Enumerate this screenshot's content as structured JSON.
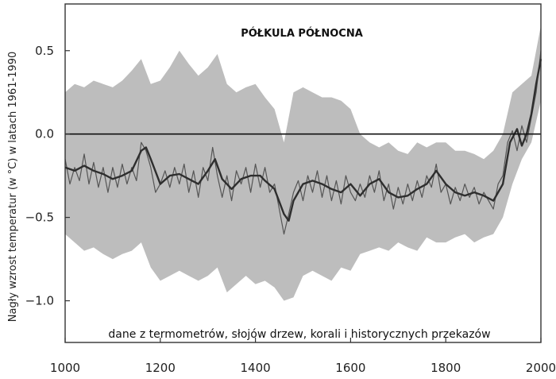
{
  "chart_data": {
    "type": "line",
    "title": "PÓŁKULA PÓŁNOCNA",
    "annotation": "dane z termometrów, słojów drzew, korali i historycznych przekazów",
    "xlabel": "",
    "ylabel": "Nagły wzrost temperatur (w °C) w latach 1961-1990",
    "xlim": [
      1000,
      2000
    ],
    "ylim": [
      -1.25,
      0.78
    ],
    "xticks": [
      1000,
      1200,
      1400,
      1600,
      1800,
      2000
    ],
    "yticks": [
      0.5,
      0.0,
      -0.5,
      -1.0
    ],
    "ytick_labels": [
      "0.5",
      "0.0",
      "−0.5",
      "−1.0"
    ],
    "reference_line": 0.0,
    "colors": {
      "band": "#bdbdbd",
      "annual": "#555555",
      "smoothed": "#2e2e2e",
      "reference": "#111111",
      "frame": "#333333"
    },
    "series": [
      {
        "role": "smoothed",
        "x": [
          1000,
          1020,
          1040,
          1060,
          1080,
          1100,
          1120,
          1140,
          1160,
          1170,
          1180,
          1200,
          1220,
          1240,
          1260,
          1280,
          1300,
          1315,
          1330,
          1350,
          1370,
          1390,
          1410,
          1420,
          1440,
          1460,
          1470,
          1480,
          1500,
          1520,
          1540,
          1560,
          1580,
          1600,
          1620,
          1640,
          1660,
          1680,
          1700,
          1720,
          1740,
          1760,
          1780,
          1800,
          1820,
          1840,
          1860,
          1880,
          1900,
          1920,
          1935,
          1950,
          1960,
          1970,
          1980,
          1990,
          2000
        ],
        "y": [
          -0.2,
          -0.22,
          -0.19,
          -0.22,
          -0.24,
          -0.27,
          -0.25,
          -0.22,
          -0.1,
          -0.08,
          -0.15,
          -0.3,
          -0.25,
          -0.24,
          -0.27,
          -0.3,
          -0.22,
          -0.15,
          -0.27,
          -0.33,
          -0.27,
          -0.25,
          -0.25,
          -0.28,
          -0.33,
          -0.48,
          -0.52,
          -0.4,
          -0.3,
          -0.28,
          -0.3,
          -0.33,
          -0.35,
          -0.3,
          -0.37,
          -0.3,
          -0.27,
          -0.35,
          -0.38,
          -0.37,
          -0.33,
          -0.3,
          -0.22,
          -0.3,
          -0.35,
          -0.37,
          -0.35,
          -0.37,
          -0.4,
          -0.3,
          -0.05,
          0.03,
          -0.07,
          0.0,
          0.12,
          0.3,
          0.45
        ]
      },
      {
        "role": "annual",
        "x": [
          1000,
          1010,
          1020,
          1030,
          1040,
          1050,
          1060,
          1070,
          1080,
          1090,
          1100,
          1110,
          1120,
          1130,
          1140,
          1150,
          1160,
          1170,
          1180,
          1190,
          1200,
          1210,
          1220,
          1230,
          1240,
          1250,
          1260,
          1270,
          1280,
          1290,
          1300,
          1310,
          1320,
          1330,
          1340,
          1350,
          1360,
          1370,
          1380,
          1390,
          1400,
          1410,
          1420,
          1430,
          1440,
          1450,
          1460,
          1470,
          1480,
          1490,
          1500,
          1510,
          1520,
          1530,
          1540,
          1550,
          1560,
          1570,
          1580,
          1590,
          1600,
          1610,
          1620,
          1630,
          1640,
          1650,
          1660,
          1670,
          1680,
          1690,
          1700,
          1710,
          1720,
          1730,
          1740,
          1750,
          1760,
          1770,
          1780,
          1790,
          1800,
          1810,
          1820,
          1830,
          1840,
          1850,
          1860,
          1870,
          1880,
          1890,
          1900,
          1910,
          1920,
          1930,
          1940,
          1950,
          1960,
          1970,
          1980,
          1990,
          2000
        ],
        "y": [
          -0.15,
          -0.3,
          -0.2,
          -0.28,
          -0.12,
          -0.3,
          -0.17,
          -0.32,
          -0.2,
          -0.35,
          -0.2,
          -0.32,
          -0.18,
          -0.3,
          -0.2,
          -0.28,
          -0.05,
          -0.1,
          -0.2,
          -0.35,
          -0.3,
          -0.22,
          -0.32,
          -0.2,
          -0.3,
          -0.18,
          -0.35,
          -0.22,
          -0.38,
          -0.2,
          -0.28,
          -0.08,
          -0.25,
          -0.38,
          -0.25,
          -0.4,
          -0.22,
          -0.3,
          -0.2,
          -0.35,
          -0.18,
          -0.32,
          -0.2,
          -0.35,
          -0.3,
          -0.45,
          -0.6,
          -0.48,
          -0.35,
          -0.28,
          -0.4,
          -0.25,
          -0.35,
          -0.22,
          -0.38,
          -0.25,
          -0.4,
          -0.28,
          -0.42,
          -0.25,
          -0.35,
          -0.4,
          -0.3,
          -0.38,
          -0.25,
          -0.35,
          -0.22,
          -0.4,
          -0.3,
          -0.45,
          -0.32,
          -0.42,
          -0.3,
          -0.4,
          -0.28,
          -0.38,
          -0.25,
          -0.32,
          -0.18,
          -0.35,
          -0.3,
          -0.42,
          -0.32,
          -0.4,
          -0.3,
          -0.38,
          -0.32,
          -0.42,
          -0.35,
          -0.4,
          -0.45,
          -0.3,
          -0.25,
          -0.05,
          0.02,
          -0.1,
          0.05,
          -0.05,
          0.1,
          0.25,
          0.5
        ]
      },
      {
        "role": "uncertainty-band",
        "x": [
          1000,
          1020,
          1040,
          1060,
          1080,
          1100,
          1120,
          1140,
          1160,
          1180,
          1200,
          1220,
          1240,
          1260,
          1280,
          1300,
          1320,
          1340,
          1360,
          1380,
          1400,
          1420,
          1440,
          1460,
          1480,
          1500,
          1520,
          1540,
          1560,
          1580,
          1600,
          1620,
          1640,
          1660,
          1680,
          1700,
          1720,
          1740,
          1760,
          1780,
          1800,
          1820,
          1840,
          1860,
          1880,
          1900,
          1920,
          1940,
          1960,
          1980,
          2000
        ],
        "upper": [
          0.25,
          0.3,
          0.28,
          0.32,
          0.3,
          0.28,
          0.32,
          0.38,
          0.45,
          0.3,
          0.32,
          0.4,
          0.5,
          0.42,
          0.35,
          0.4,
          0.48,
          0.3,
          0.25,
          0.28,
          0.3,
          0.22,
          0.15,
          -0.05,
          0.25,
          0.28,
          0.25,
          0.22,
          0.22,
          0.2,
          0.15,
          0.0,
          -0.05,
          -0.08,
          -0.05,
          -0.1,
          -0.12,
          -0.05,
          -0.08,
          -0.05,
          -0.05,
          -0.1,
          -0.1,
          -0.12,
          -0.15,
          -0.1,
          0.0,
          0.25,
          0.3,
          0.35,
          0.65
        ],
        "lower": [
          -0.6,
          -0.65,
          -0.7,
          -0.68,
          -0.72,
          -0.75,
          -0.72,
          -0.7,
          -0.65,
          -0.8,
          -0.88,
          -0.85,
          -0.82,
          -0.85,
          -0.88,
          -0.85,
          -0.8,
          -0.95,
          -0.9,
          -0.85,
          -0.9,
          -0.88,
          -0.92,
          -1.0,
          -0.98,
          -0.85,
          -0.82,
          -0.85,
          -0.88,
          -0.8,
          -0.82,
          -0.72,
          -0.7,
          -0.68,
          -0.7,
          -0.65,
          -0.68,
          -0.7,
          -0.62,
          -0.65,
          -0.65,
          -0.62,
          -0.6,
          -0.65,
          -0.62,
          -0.6,
          -0.5,
          -0.3,
          -0.15,
          -0.05,
          0.2
        ]
      }
    ]
  }
}
